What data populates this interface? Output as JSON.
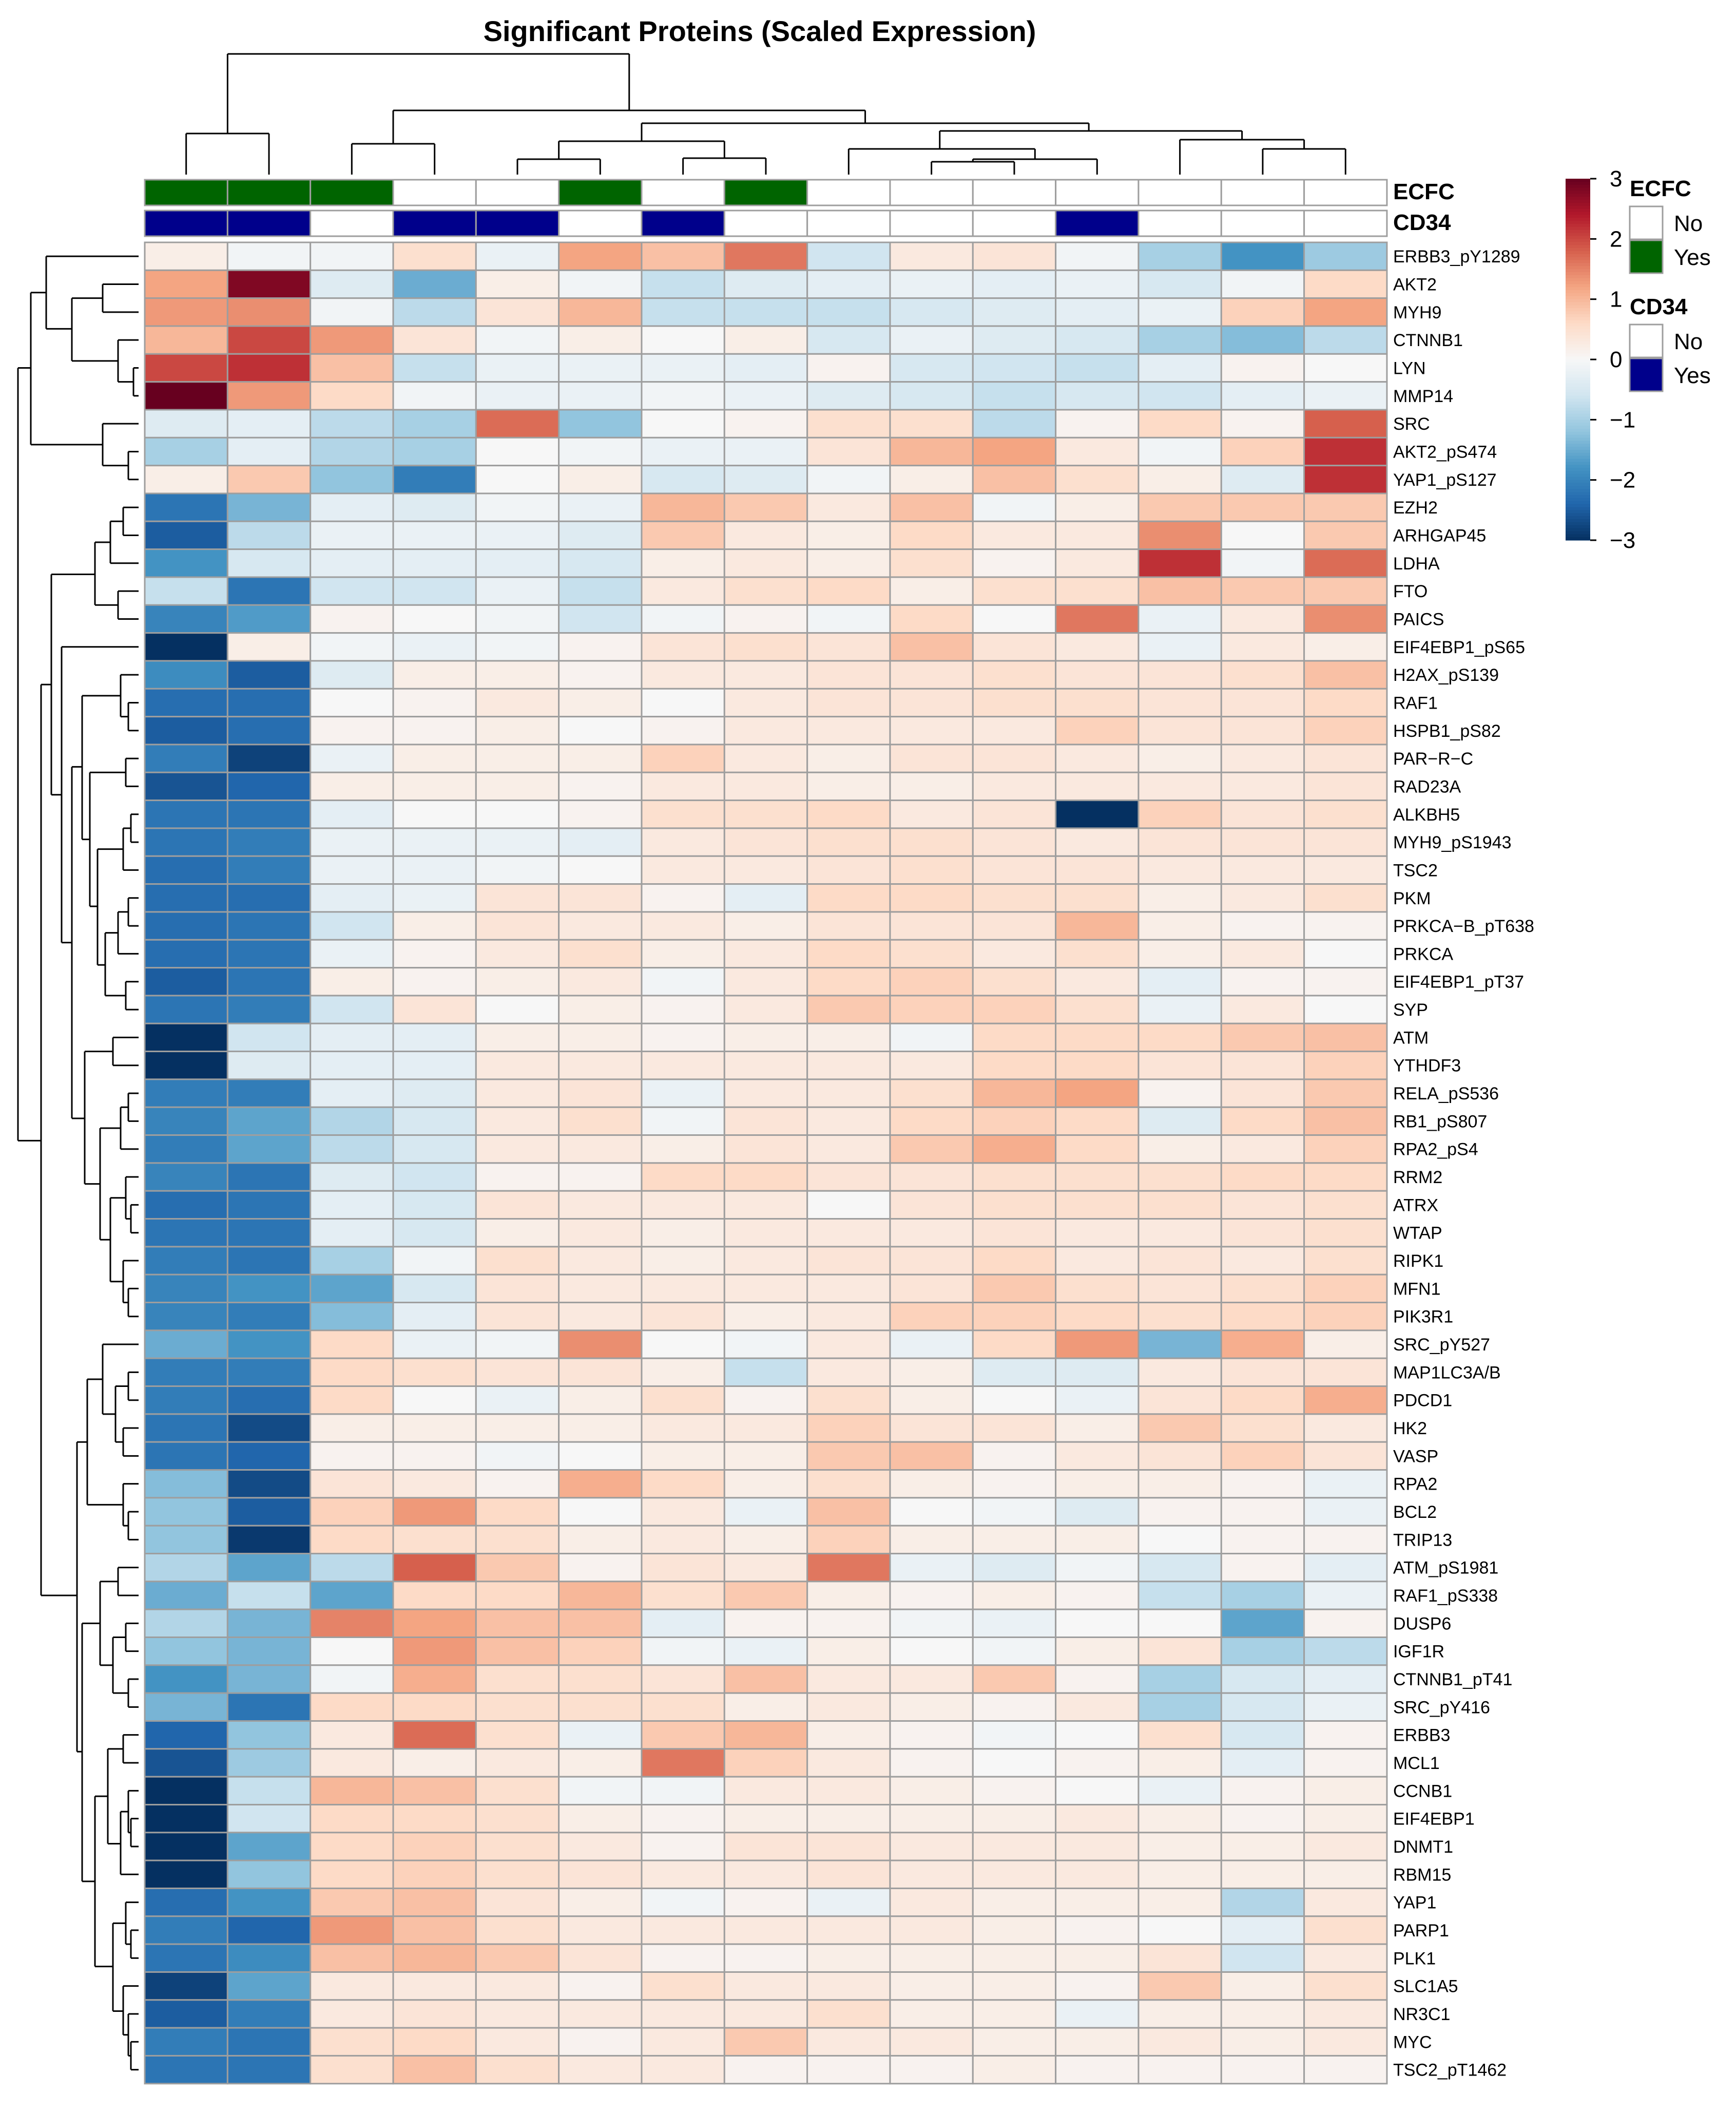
{
  "chart_data": {
    "type": "heatmap",
    "title": "Significant Proteins (Scaled Expression)",
    "color_scale": {
      "min": -3,
      "max": 3,
      "ticks": [
        3,
        2,
        1,
        0,
        -1,
        -2,
        -3
      ],
      "tick_labels": [
        "3",
        "2",
        "1",
        "0",
        "−1",
        "−2",
        "−3"
      ],
      "colors": [
        "#053061",
        "#2166ac",
        "#4393c3",
        "#92c5de",
        "#d1e5f0",
        "#f7f7f7",
        "#fddbc7",
        "#f4a582",
        "#d6604d",
        "#b2182b",
        "#67001f"
      ]
    },
    "column_annotations": [
      {
        "name": "ECFC",
        "levels": [
          {
            "label": "No",
            "color": "#ffffff"
          },
          {
            "label": "Yes",
            "color": "#006400"
          }
        ],
        "values": [
          "Yes",
          "Yes",
          "Yes",
          "No",
          "No",
          "Yes",
          "No",
          "Yes",
          "No",
          "No",
          "No",
          "No",
          "No",
          "No",
          "No"
        ]
      },
      {
        "name": "CD34",
        "levels": [
          {
            "label": "No",
            "color": "#ffffff"
          },
          {
            "label": "Yes",
            "color": "#00008b"
          }
        ],
        "values": [
          "Yes",
          "Yes",
          "No",
          "Yes",
          "Yes",
          "No",
          "Yes",
          "No",
          "No",
          "No",
          "No",
          "Yes",
          "No",
          "No",
          "No"
        ]
      }
    ],
    "rows": [
      "ERBB3_pY1289",
      "AKT2",
      "MYH9",
      "CTNNB1",
      "LYN",
      "MMP14",
      "SRC",
      "AKT2_pS474",
      "YAP1_pS127",
      "EZH2",
      "ARHGAP45",
      "LDHA",
      "FTO",
      "PAICS",
      "EIF4EBP1_pS65",
      "H2AX_pS139",
      "RAF1",
      "HSPB1_pS82",
      "PAR−R−C",
      "RAD23A",
      "ALKBH5",
      "MYH9_pS1943",
      "TSC2",
      "PKM",
      "PRKCA−B_pT638",
      "PRKCA",
      "EIF4EBP1_pT37",
      "SYP",
      "ATM",
      "YTHDF3",
      "RELA_pS536",
      "RB1_pS807",
      "RPA2_pS4",
      "RRM2",
      "ATRX",
      "WTAP",
      "RIPK1",
      "MFN1",
      "PIK3R1",
      "SRC_pY527",
      "MAP1LC3A/B",
      "PDCD1",
      "HK2",
      "VASP",
      "RPA2",
      "BCL2",
      "TRIP13",
      "ATM_pS1981",
      "RAF1_pS338",
      "DUSP6",
      "IGF1R",
      "CTNNB1_pT41",
      "SRC_pY416",
      "ERBB3",
      "MCL1",
      "CCNB1",
      "EIF4EBP1",
      "DNMT1",
      "RBM15",
      "YAP1",
      "PARP1",
      "PLK1",
      "SLC1A5",
      "NR3C1",
      "MYC",
      "TSC2_pT1462"
    ],
    "values": [
      [
        0.2,
        -0.1,
        -0.1,
        0.5,
        -0.2,
        1.2,
        0.9,
        1.6,
        -0.6,
        0.3,
        0.4,
        -0.1,
        -1.0,
        -1.8,
        -1.1
      ],
      [
        1.2,
        2.8,
        -0.4,
        -1.5,
        0.2,
        -0.1,
        -0.7,
        -0.4,
        -0.3,
        -0.2,
        -0.3,
        -0.2,
        -0.5,
        -0.1,
        0.6
      ],
      [
        1.3,
        1.4,
        -0.1,
        -0.8,
        0.4,
        1.0,
        -0.7,
        -0.7,
        -0.7,
        -0.5,
        -0.4,
        -0.3,
        -0.2,
        0.7,
        1.2
      ],
      [
        1.0,
        2.0,
        1.3,
        0.4,
        -0.1,
        0.2,
        0.0,
        0.2,
        -0.5,
        -0.2,
        -0.4,
        -0.5,
        -1.0,
        -1.3,
        -0.8
      ],
      [
        2.0,
        2.2,
        0.9,
        -0.7,
        -0.2,
        -0.2,
        -0.2,
        -0.3,
        0.1,
        -0.5,
        -0.6,
        -0.7,
        -0.3,
        0.1,
        0.0
      ],
      [
        3.0,
        1.3,
        0.6,
        -0.1,
        -0.2,
        -0.2,
        -0.1,
        -0.2,
        -0.4,
        -0.5,
        -0.7,
        -0.5,
        -0.6,
        -0.3,
        -0.2
      ],
      [
        -0.4,
        -0.3,
        -0.8,
        -1.0,
        1.7,
        -1.2,
        0.0,
        0.1,
        0.5,
        0.5,
        -0.8,
        0.1,
        0.6,
        0.1,
        1.8
      ],
      [
        -1.0,
        -0.3,
        -0.9,
        -1.0,
        0.0,
        -0.1,
        -0.2,
        -0.2,
        0.4,
        1.0,
        1.2,
        0.3,
        -0.1,
        0.7,
        2.2
      ],
      [
        0.2,
        0.8,
        -1.2,
        -2.1,
        0.0,
        0.2,
        -0.5,
        -0.4,
        -0.1,
        0.2,
        0.9,
        0.5,
        0.2,
        -0.4,
        2.2
      ],
      [
        -2.2,
        -1.4,
        -0.3,
        -0.4,
        -0.1,
        -0.2,
        1.0,
        0.8,
        0.3,
        0.9,
        -0.1,
        0.2,
        0.8,
        0.8,
        0.8
      ],
      [
        -2.5,
        -0.8,
        -0.2,
        -0.2,
        -0.2,
        -0.4,
        0.8,
        0.3,
        0.2,
        0.6,
        0.3,
        0.3,
        1.4,
        0.0,
        0.8
      ],
      [
        -1.8,
        -0.5,
        -0.3,
        -0.3,
        -0.3,
        -0.5,
        0.2,
        0.3,
        0.2,
        0.5,
        0.1,
        0.3,
        2.2,
        -0.1,
        1.7
      ],
      [
        -0.7,
        -2.2,
        -0.6,
        -0.6,
        -0.2,
        -0.7,
        0.3,
        0.5,
        0.6,
        0.2,
        0.5,
        0.5,
        0.9,
        0.8,
        0.8
      ],
      [
        -2.0,
        -1.7,
        0.1,
        0.0,
        -0.1,
        -0.6,
        -0.1,
        0.1,
        -0.1,
        0.6,
        0.0,
        1.6,
        -0.2,
        0.3,
        1.4
      ],
      [
        -3.0,
        0.2,
        -0.1,
        -0.2,
        -0.1,
        0.1,
        0.4,
        0.5,
        0.4,
        0.9,
        0.4,
        0.3,
        -0.2,
        0.3,
        0.2
      ],
      [
        -1.9,
        -2.5,
        -0.4,
        0.2,
        0.2,
        0.1,
        0.3,
        0.3,
        0.4,
        0.4,
        0.5,
        0.4,
        0.4,
        0.5,
        0.9
      ],
      [
        -2.3,
        -2.3,
        0.0,
        0.1,
        0.3,
        0.2,
        0.0,
        0.3,
        0.4,
        0.4,
        0.5,
        0.5,
        0.4,
        0.4,
        0.6
      ],
      [
        -2.5,
        -2.3,
        0.1,
        0.1,
        0.2,
        0.0,
        0.1,
        0.3,
        0.3,
        0.3,
        0.3,
        0.7,
        0.4,
        0.4,
        0.7
      ],
      [
        -2.1,
        -2.8,
        -0.2,
        0.2,
        0.2,
        0.2,
        0.7,
        0.3,
        0.2,
        0.4,
        0.4,
        0.3,
        0.2,
        0.3,
        0.4
      ],
      [
        -2.6,
        -2.4,
        0.2,
        0.2,
        0.2,
        0.1,
        0.3,
        0.3,
        0.2,
        0.2,
        0.3,
        0.3,
        0.3,
        0.3,
        0.4
      ],
      [
        -2.2,
        -2.2,
        -0.3,
        0.0,
        0.0,
        0.1,
        0.5,
        0.5,
        0.6,
        0.3,
        0.4,
        -3.0,
        0.7,
        0.4,
        0.5
      ],
      [
        -2.2,
        -2.1,
        -0.2,
        -0.2,
        -0.2,
        -0.3,
        0.3,
        0.4,
        0.5,
        0.5,
        0.4,
        0.3,
        0.4,
        0.4,
        0.4
      ],
      [
        -2.3,
        -2.1,
        -0.2,
        -0.2,
        -0.1,
        0.0,
        0.3,
        0.3,
        0.4,
        0.5,
        0.4,
        0.4,
        0.3,
        0.3,
        0.3
      ],
      [
        -2.3,
        -2.3,
        -0.3,
        -0.2,
        0.4,
        0.4,
        0.1,
        -0.3,
        0.6,
        0.6,
        0.5,
        0.5,
        0.2,
        0.3,
        0.5
      ],
      [
        -2.3,
        -2.2,
        -0.6,
        0.2,
        0.4,
        0.3,
        0.3,
        0.2,
        0.4,
        0.4,
        0.4,
        1.0,
        0.2,
        0.1,
        0.1
      ],
      [
        -2.3,
        -2.2,
        -0.2,
        0.1,
        0.3,
        0.5,
        0.2,
        0.3,
        0.6,
        0.5,
        0.3,
        0.5,
        0.2,
        0.3,
        0.0
      ],
      [
        -2.5,
        -2.2,
        0.2,
        0.1,
        0.2,
        0.3,
        -0.1,
        0.3,
        0.6,
        0.7,
        0.5,
        0.3,
        -0.3,
        0.1,
        0.1
      ],
      [
        -2.2,
        -2.1,
        -0.6,
        0.4,
        0.0,
        0.2,
        0.1,
        0.3,
        0.8,
        0.7,
        0.7,
        0.5,
        -0.2,
        0.3,
        0.0
      ],
      [
        -3.0,
        -0.6,
        -0.3,
        -0.3,
        0.2,
        0.2,
        0.1,
        0.2,
        0.2,
        -0.1,
        0.6,
        0.6,
        0.6,
        0.8,
        0.9
      ],
      [
        -3.0,
        -0.4,
        -0.3,
        -0.3,
        0.3,
        0.3,
        0.3,
        0.3,
        0.3,
        0.3,
        0.6,
        0.6,
        0.4,
        0.4,
        0.7
      ],
      [
        -2.1,
        -2.1,
        -0.3,
        -0.4,
        0.3,
        0.4,
        -0.2,
        0.3,
        0.3,
        0.5,
        1.0,
        1.2,
        0.1,
        0.4,
        0.8
      ],
      [
        -2.0,
        -1.6,
        -0.9,
        -0.5,
        0.3,
        0.5,
        -0.1,
        0.4,
        0.3,
        0.6,
        0.7,
        0.6,
        -0.4,
        0.6,
        0.9
      ],
      [
        -2.1,
        -1.6,
        -0.8,
        -0.5,
        0.3,
        0.3,
        0.2,
        0.4,
        0.3,
        0.8,
        1.1,
        0.6,
        0.2,
        0.3,
        0.7
      ],
      [
        -2.0,
        -2.2,
        -0.4,
        -0.6,
        0.1,
        0.1,
        0.6,
        0.6,
        0.4,
        0.4,
        0.5,
        0.5,
        0.5,
        0.6,
        0.6
      ],
      [
        -2.3,
        -2.2,
        -0.3,
        -0.5,
        0.4,
        0.3,
        0.3,
        0.3,
        0.0,
        0.4,
        0.5,
        0.5,
        0.5,
        0.4,
        0.5
      ],
      [
        -2.2,
        -2.2,
        -0.3,
        -0.5,
        0.2,
        0.3,
        0.2,
        0.3,
        0.3,
        0.3,
        0.4,
        0.3,
        0.3,
        0.4,
        0.5
      ],
      [
        -2.1,
        -2.2,
        -1.0,
        -0.1,
        0.5,
        0.3,
        0.2,
        0.3,
        0.4,
        0.4,
        0.6,
        0.3,
        0.4,
        0.3,
        0.5
      ],
      [
        -2.0,
        -1.8,
        -1.6,
        -0.5,
        0.4,
        0.3,
        0.3,
        0.3,
        0.3,
        0.4,
        0.8,
        0.5,
        0.4,
        0.5,
        0.7
      ],
      [
        -2.0,
        -2.1,
        -1.3,
        -0.3,
        0.4,
        0.3,
        0.4,
        0.2,
        0.3,
        0.7,
        0.7,
        0.6,
        0.5,
        0.6,
        0.7
      ],
      [
        -1.5,
        -1.8,
        0.6,
        -0.2,
        -0.1,
        1.4,
        0.0,
        -0.1,
        0.3,
        -0.2,
        0.6,
        1.3,
        -1.4,
        1.1,
        0.2
      ],
      [
        -2.1,
        -2.1,
        0.6,
        0.5,
        0.4,
        0.4,
        0.2,
        -0.7,
        0.3,
        0.2,
        -0.4,
        -0.4,
        0.3,
        0.4,
        0.4
      ],
      [
        -2.1,
        -2.3,
        0.6,
        0.0,
        -0.2,
        0.2,
        0.5,
        0.1,
        0.5,
        0.2,
        0.0,
        -0.2,
        0.4,
        0.6,
        1.1
      ],
      [
        -2.2,
        -2.7,
        0.2,
        0.2,
        0.2,
        0.2,
        0.3,
        0.3,
        0.7,
        0.4,
        0.4,
        0.2,
        0.8,
        0.5,
        0.3
      ],
      [
        -2.2,
        -2.4,
        0.1,
        0.1,
        -0.1,
        0.0,
        0.2,
        0.2,
        0.8,
        0.9,
        0.1,
        0.3,
        0.4,
        0.7,
        0.4
      ],
      [
        -1.3,
        -2.7,
        0.4,
        0.3,
        0.1,
        1.1,
        0.6,
        0.2,
        0.5,
        0.2,
        0.1,
        0.2,
        0.2,
        0.1,
        -0.2
      ],
      [
        -1.2,
        -2.5,
        0.7,
        1.3,
        0.6,
        0.0,
        0.3,
        -0.2,
        0.9,
        0.0,
        -0.1,
        -0.4,
        0.1,
        0.1,
        -0.2
      ],
      [
        -1.2,
        -2.9,
        0.6,
        0.5,
        0.5,
        0.2,
        0.3,
        0.2,
        0.7,
        0.2,
        0.2,
        0.2,
        0.0,
        0.1,
        0.1
      ],
      [
        -0.9,
        -1.6,
        -0.8,
        1.8,
        0.8,
        0.1,
        0.4,
        0.3,
        1.6,
        -0.2,
        -0.4,
        -0.1,
        -0.5,
        0.1,
        -0.3
      ],
      [
        -1.5,
        -0.7,
        -1.6,
        0.6,
        0.6,
        1.0,
        0.5,
        0.8,
        0.2,
        0.1,
        0.2,
        0.1,
        -0.7,
        -1.0,
        -0.2
      ],
      [
        -0.9,
        -1.4,
        1.5,
        1.2,
        0.9,
        0.9,
        -0.3,
        0.1,
        0.1,
        -0.1,
        -0.2,
        0.0,
        0.0,
        -1.6,
        0.1
      ],
      [
        -1.2,
        -1.4,
        0.0,
        1.3,
        0.9,
        0.7,
        -0.1,
        -0.2,
        0.2,
        0.0,
        -0.1,
        0.2,
        0.4,
        -1.0,
        -0.8
      ],
      [
        -1.8,
        -1.4,
        -0.1,
        1.1,
        0.5,
        0.5,
        0.4,
        0.9,
        0.3,
        0.3,
        0.8,
        0.1,
        -1.0,
        -0.5,
        -0.3
      ],
      [
        -1.4,
        -2.2,
        0.6,
        0.6,
        0.5,
        0.5,
        0.5,
        0.2,
        0.3,
        0.2,
        0.1,
        0.3,
        -1.0,
        -0.5,
        -0.2
      ],
      [
        -2.4,
        -1.2,
        0.3,
        1.7,
        0.5,
        -0.2,
        0.8,
        1.0,
        0.2,
        0.1,
        -0.1,
        0.0,
        0.5,
        -0.5,
        0.1
      ],
      [
        -2.6,
        -1.1,
        0.3,
        0.2,
        0.3,
        0.2,
        1.6,
        0.7,
        0.3,
        0.1,
        0.0,
        0.1,
        0.2,
        -0.3,
        0.1
      ],
      [
        -3.0,
        -0.7,
        1.0,
        0.9,
        0.5,
        -0.1,
        -0.1,
        0.3,
        0.3,
        0.2,
        0.1,
        0.0,
        -0.2,
        0.1,
        0.2
      ],
      [
        -3.0,
        -0.6,
        0.6,
        0.6,
        0.5,
        0.2,
        0.1,
        0.2,
        0.2,
        0.2,
        0.2,
        0.3,
        0.2,
        0.1,
        0.2
      ],
      [
        -3.0,
        -1.6,
        0.6,
        0.7,
        0.5,
        0.3,
        0.1,
        0.4,
        0.4,
        0.3,
        0.3,
        0.3,
        0.2,
        0.2,
        0.3
      ],
      [
        -3.0,
        -1.2,
        0.6,
        0.7,
        0.5,
        0.4,
        0.3,
        0.3,
        0.4,
        0.3,
        0.3,
        0.3,
        0.2,
        0.2,
        0.2
      ],
      [
        -2.3,
        -1.8,
        0.8,
        0.9,
        0.4,
        0.2,
        -0.1,
        0.1,
        -0.2,
        0.3,
        0.2,
        0.2,
        0.2,
        -0.9,
        0.3
      ],
      [
        -2.1,
        -2.4,
        1.3,
        0.9,
        0.5,
        0.3,
        0.3,
        0.3,
        0.3,
        0.3,
        0.2,
        0.1,
        0.0,
        -0.3,
        0.5
      ],
      [
        -2.2,
        -1.9,
        0.9,
        1.0,
        0.8,
        0.4,
        0.1,
        0.1,
        0.2,
        0.2,
        0.2,
        0.2,
        0.4,
        -0.6,
        0.3
      ],
      [
        -2.8,
        -1.6,
        0.3,
        0.3,
        0.3,
        0.1,
        0.5,
        0.3,
        0.3,
        0.2,
        0.2,
        0.1,
        0.8,
        0.2,
        0.5
      ],
      [
        -2.5,
        -2.1,
        0.3,
        0.4,
        0.3,
        0.3,
        0.3,
        0.3,
        0.5,
        0.2,
        0.2,
        -0.2,
        0.2,
        0.2,
        0.3
      ],
      [
        -2.1,
        -2.2,
        0.5,
        0.6,
        0.3,
        0.1,
        0.3,
        0.8,
        0.3,
        0.3,
        0.2,
        0.2,
        0.3,
        0.2,
        0.3
      ],
      [
        -2.2,
        -2.2,
        0.5,
        0.9,
        0.5,
        0.3,
        0.3,
        0.1,
        0.1,
        0.1,
        0.2,
        0.1,
        0.1,
        0.1,
        0.1
      ]
    ],
    "legend_position": "right"
  }
}
